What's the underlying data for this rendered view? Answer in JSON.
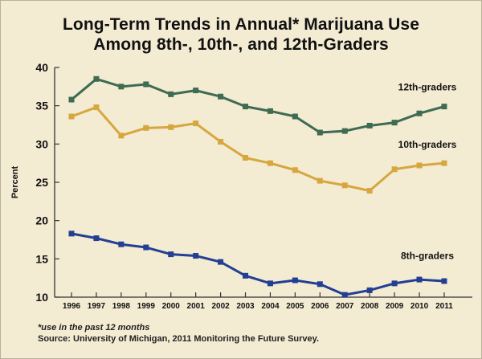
{
  "page": {
    "title_line1": "Long-Term Trends in Annual* Marijuana Use",
    "title_line2": "Among 8th-, 10th-, and 12th-Graders",
    "footnote": "*use in the past 12 months",
    "source": "Source: University of Michigan, 2011 Monitoring the Future Survey.",
    "background_color": "#f3ebd2"
  },
  "chart_data": {
    "type": "line",
    "title": "Long-Term Trends in Annual* Marijuana Use Among 8th-, 10th-, and 12th-Graders",
    "ylabel": "Percent",
    "xlabel": "",
    "ylim": [
      10,
      40
    ],
    "yticks": [
      10,
      15,
      20,
      25,
      30,
      35,
      40
    ],
    "grid": false,
    "x": [
      "1996",
      "1997",
      "1998",
      "1999",
      "2000",
      "2001",
      "2002",
      "2003",
      "2004",
      "2005",
      "2006",
      "2007",
      "2008",
      "2009",
      "2010",
      "2011"
    ],
    "series": [
      {
        "name": "12th-graders",
        "color": "#3e6b52",
        "values": [
          35.8,
          38.5,
          37.5,
          37.8,
          36.5,
          37.0,
          36.2,
          34.9,
          34.3,
          33.6,
          31.5,
          31.7,
          32.4,
          32.8,
          34.0,
          34.9
        ]
      },
      {
        "name": "10th-graders",
        "color": "#d7a73f",
        "values": [
          33.6,
          34.8,
          31.1,
          32.1,
          32.2,
          32.7,
          30.3,
          28.2,
          27.5,
          26.6,
          25.2,
          24.6,
          23.9,
          26.7,
          27.2,
          27.5
        ]
      },
      {
        "name": "8th-graders",
        "color": "#233f94",
        "values": [
          18.3,
          17.7,
          16.9,
          16.5,
          15.6,
          15.4,
          14.6,
          12.8,
          11.8,
          12.2,
          11.7,
          10.3,
          10.9,
          11.8,
          12.3,
          12.1
        ]
      }
    ]
  }
}
